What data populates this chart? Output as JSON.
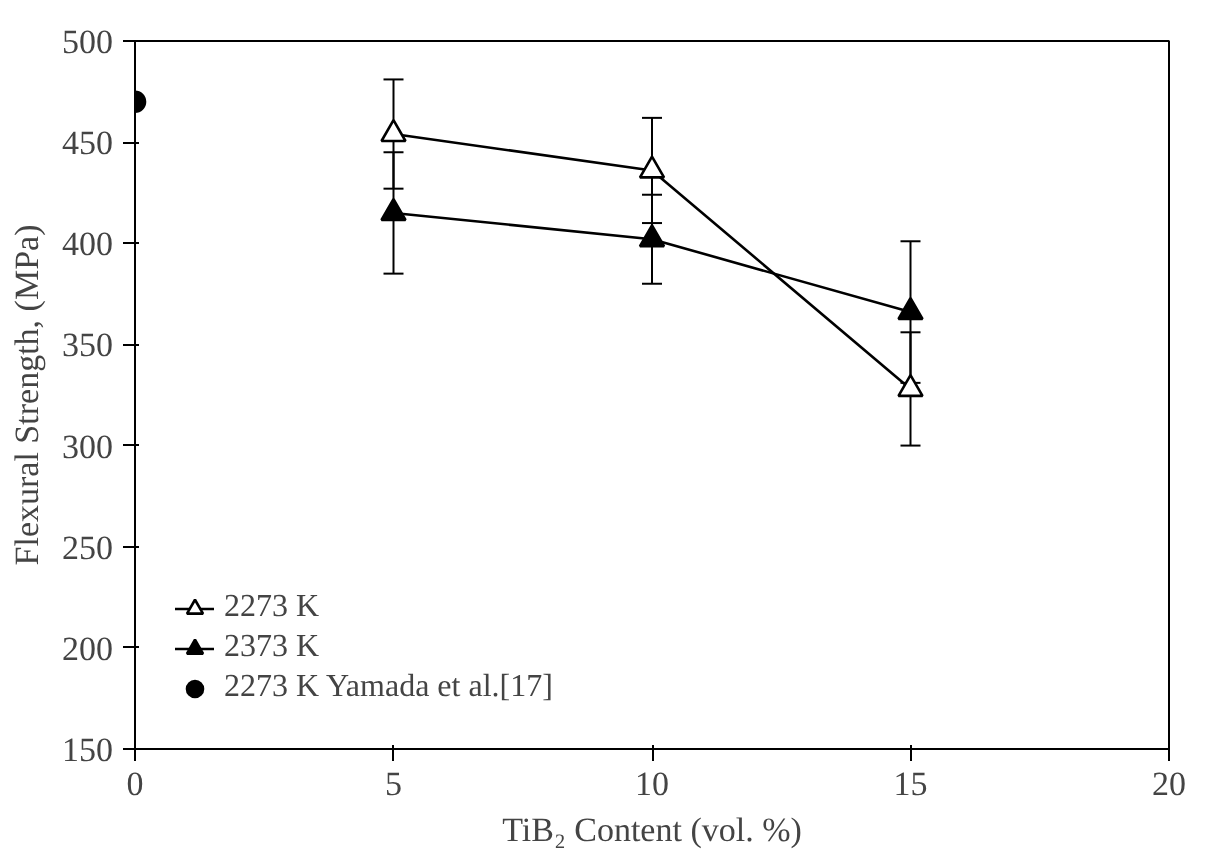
{
  "chart_data": {
    "type": "line",
    "xlabel": "TiB₂ Content (vol. %)",
    "ylabel": "Flexural Strength, (MPa)",
    "xlim": [
      0,
      20
    ],
    "xticks": [
      0,
      5,
      10,
      15,
      20
    ],
    "ylim": [
      150,
      500
    ],
    "yticks": [
      150,
      200,
      250,
      300,
      350,
      400,
      450,
      500
    ],
    "grid": false,
    "legend": "bottom left",
    "series": [
      {
        "name": "2273 K",
        "marker": "triangle_open",
        "color": "#000000",
        "x": [
          5,
          10,
          15
        ],
        "values": [
          454,
          436,
          328
        ],
        "errors": [
          27,
          26,
          28
        ]
      },
      {
        "name": "2373 K",
        "marker": "triangle",
        "color": "#000000",
        "x": [
          5,
          10,
          15
        ],
        "values": [
          415,
          402,
          366
        ],
        "errors": [
          30,
          22,
          35
        ]
      },
      {
        "name": "2273 K Yamada et al.[17]",
        "type": "scatter",
        "marker": "circle",
        "color": "#000000",
        "x": [
          0
        ],
        "values": [
          470
        ]
      }
    ]
  }
}
